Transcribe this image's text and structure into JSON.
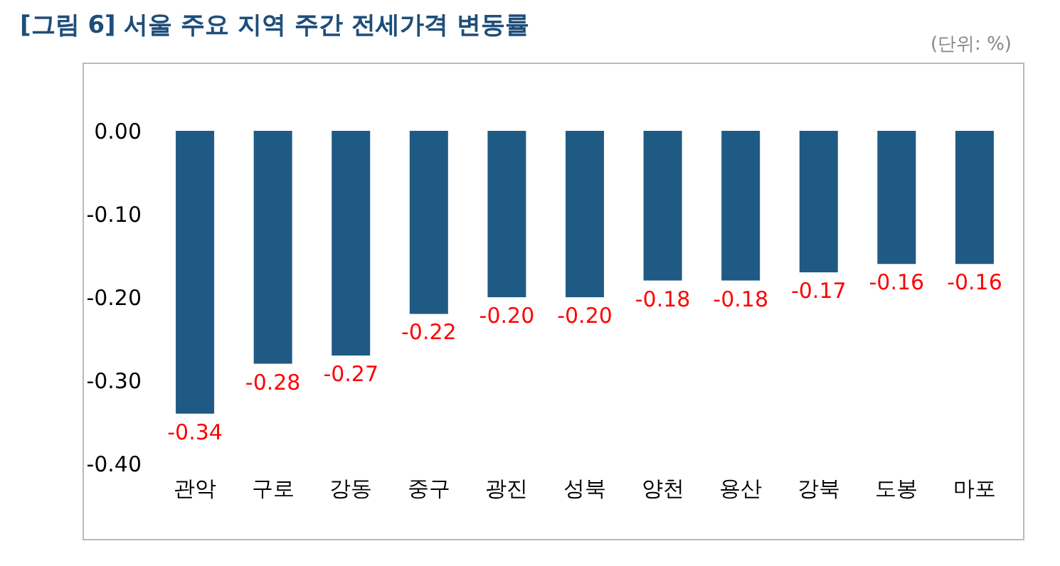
{
  "chart_data": {
    "type": "bar",
    "title": "[그림 6] 서울 주요 지역 주간 전세가격 변동률",
    "annotations": [
      "(단위: %)"
    ],
    "categories": [
      "관악",
      "구로",
      "강동",
      "중구",
      "광진",
      "성북",
      "양천",
      "용산",
      "강북",
      "도봉",
      "마포"
    ],
    "series": [
      {
        "color": "#1f5a85",
        "values": [
          -0.34,
          -0.28,
          -0.27,
          -0.22,
          -0.2,
          -0.2,
          -0.18,
          -0.18,
          -0.17,
          -0.16,
          -0.16
        ],
        "value_labels": [
          "-0.34",
          "-0.28",
          "-0.27",
          "-0.22",
          "-0.20",
          "-0.20",
          "-0.18",
          "-0.18",
          "-0.17",
          "-0.16",
          "-0.16"
        ]
      }
    ],
    "ylim": [
      -0.4,
      0
    ],
    "yticks": [
      {
        "value": 0,
        "label": "0.00"
      },
      {
        "value": -0.1,
        "label": "-0.10"
      },
      {
        "value": -0.2,
        "label": "-0.20"
      },
      {
        "value": -0.3,
        "label": "-0.30"
      },
      {
        "value": -0.4,
        "label": "-0.40"
      }
    ],
    "grid": false
  }
}
